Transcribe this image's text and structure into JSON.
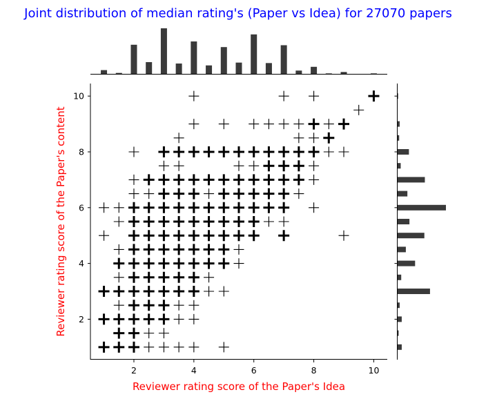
{
  "chart_data": {
    "type": "scatter",
    "title": "Joint distribution of median rating's (Paper vs Idea) for 27070 papers",
    "xlabel": "Reviewer rating score of the Paper's Idea",
    "ylabel": "Reviewer rating score of the Paper's content",
    "xlim": [
      0.55,
      10.45
    ],
    "ylim": [
      0.55,
      10.45
    ],
    "xticks": [
      2,
      4,
      6,
      8,
      10
    ],
    "yticks": [
      2,
      4,
      6,
      8,
      10
    ],
    "xtick_labels": [
      "2",
      "4",
      "6",
      "8",
      "10"
    ],
    "ytick_labels": [
      "2",
      "4",
      "6",
      "8",
      "10"
    ],
    "marker": "plus",
    "marker_color": "#000000",
    "title_color": "#0000ff",
    "label_color": "#ff0000",
    "hist_color": "#3a3a3a",
    "points": [
      [
        4,
        10,
        1
      ],
      [
        7,
        10,
        1
      ],
      [
        8,
        10,
        1
      ],
      [
        10,
        10,
        2
      ],
      [
        9.5,
        9.5,
        1
      ],
      [
        4,
        9,
        1
      ],
      [
        5,
        9,
        1
      ],
      [
        6,
        9,
        1
      ],
      [
        6.5,
        9,
        1
      ],
      [
        7,
        9,
        1
      ],
      [
        7.5,
        9,
        1
      ],
      [
        8,
        9,
        2
      ],
      [
        8.5,
        9,
        1
      ],
      [
        9,
        9,
        2
      ],
      [
        3.5,
        8.5,
        1
      ],
      [
        7.5,
        8.5,
        1
      ],
      [
        8,
        8.5,
        1
      ],
      [
        8.5,
        8.5,
        2
      ],
      [
        2,
        8,
        1
      ],
      [
        3,
        8,
        2
      ],
      [
        3.5,
        8,
        2
      ],
      [
        4,
        8,
        2
      ],
      [
        4.5,
        8,
        2
      ],
      [
        5,
        8,
        2
      ],
      [
        5.5,
        8,
        2
      ],
      [
        6,
        8,
        2
      ],
      [
        6.5,
        8,
        2
      ],
      [
        7,
        8,
        2
      ],
      [
        7.5,
        8,
        2
      ],
      [
        8,
        8,
        2
      ],
      [
        8.5,
        8,
        1
      ],
      [
        9,
        8,
        1
      ],
      [
        3,
        7.5,
        1
      ],
      [
        3.5,
        7.5,
        1
      ],
      [
        5.5,
        7.5,
        1
      ],
      [
        6,
        7.5,
        1
      ],
      [
        6.5,
        7.5,
        2
      ],
      [
        7,
        7.5,
        2
      ],
      [
        7.5,
        7.5,
        2
      ],
      [
        8,
        7.5,
        1
      ],
      [
        2,
        7,
        1
      ],
      [
        2.5,
        7,
        2
      ],
      [
        3,
        7,
        2
      ],
      [
        3.5,
        7,
        2
      ],
      [
        4,
        7,
        2
      ],
      [
        4.5,
        7,
        2
      ],
      [
        5,
        7,
        2
      ],
      [
        5.5,
        7,
        2
      ],
      [
        6,
        7,
        2
      ],
      [
        6.5,
        7,
        2
      ],
      [
        7,
        7,
        2
      ],
      [
        7.5,
        7,
        2
      ],
      [
        8,
        7,
        1
      ],
      [
        2,
        6.5,
        1
      ],
      [
        2.5,
        6.5,
        1
      ],
      [
        3,
        6.5,
        2
      ],
      [
        3.5,
        6.5,
        2
      ],
      [
        4,
        6.5,
        2
      ],
      [
        4.5,
        6.5,
        1
      ],
      [
        5,
        6.5,
        2
      ],
      [
        5.5,
        6.5,
        2
      ],
      [
        6,
        6.5,
        2
      ],
      [
        6.5,
        6.5,
        2
      ],
      [
        7,
        6.5,
        2
      ],
      [
        7.5,
        6.5,
        1
      ],
      [
        1,
        6,
        1
      ],
      [
        1.5,
        6,
        1
      ],
      [
        2,
        6,
        2
      ],
      [
        2.5,
        6,
        2
      ],
      [
        3,
        6,
        2
      ],
      [
        3.5,
        6,
        2
      ],
      [
        4,
        6,
        2
      ],
      [
        4.5,
        6,
        2
      ],
      [
        5,
        6,
        2
      ],
      [
        5.5,
        6,
        2
      ],
      [
        6,
        6,
        2
      ],
      [
        6.5,
        6,
        2
      ],
      [
        7,
        6,
        2
      ],
      [
        8,
        6,
        1
      ],
      [
        1.5,
        5.5,
        1
      ],
      [
        2,
        5.5,
        2
      ],
      [
        2.5,
        5.5,
        2
      ],
      [
        3,
        5.5,
        2
      ],
      [
        3.5,
        5.5,
        2
      ],
      [
        4,
        5.5,
        2
      ],
      [
        4.5,
        5.5,
        2
      ],
      [
        5,
        5.5,
        2
      ],
      [
        5.5,
        5.5,
        2
      ],
      [
        6,
        5.5,
        2
      ],
      [
        6.5,
        5.5,
        1
      ],
      [
        7,
        5.5,
        1
      ],
      [
        1,
        5,
        1
      ],
      [
        2,
        5,
        2
      ],
      [
        2.5,
        5,
        2
      ],
      [
        3,
        5,
        2
      ],
      [
        3.5,
        5,
        2
      ],
      [
        4,
        5,
        2
      ],
      [
        4.5,
        5,
        2
      ],
      [
        5,
        5,
        2
      ],
      [
        5.5,
        5,
        2
      ],
      [
        6,
        5,
        2
      ],
      [
        7,
        5,
        2
      ],
      [
        9,
        5,
        1
      ],
      [
        1.5,
        4.5,
        1
      ],
      [
        2,
        4.5,
        2
      ],
      [
        2.5,
        4.5,
        2
      ],
      [
        3,
        4.5,
        2
      ],
      [
        3.5,
        4.5,
        2
      ],
      [
        4,
        4.5,
        2
      ],
      [
        4.5,
        4.5,
        2
      ],
      [
        5,
        4.5,
        2
      ],
      [
        5.5,
        4.5,
        1
      ],
      [
        1.5,
        4,
        2
      ],
      [
        2,
        4,
        2
      ],
      [
        2.5,
        4,
        2
      ],
      [
        3,
        4,
        2
      ],
      [
        3.5,
        4,
        2
      ],
      [
        4,
        4,
        2
      ],
      [
        4.5,
        4,
        2
      ],
      [
        5,
        4,
        2
      ],
      [
        5.5,
        4,
        1
      ],
      [
        1.5,
        3.5,
        1
      ],
      [
        2,
        3.5,
        2
      ],
      [
        2.5,
        3.5,
        2
      ],
      [
        3,
        3.5,
        2
      ],
      [
        3.5,
        3.5,
        2
      ],
      [
        4,
        3.5,
        2
      ],
      [
        4.5,
        3.5,
        1
      ],
      [
        1,
        3,
        2
      ],
      [
        1.5,
        3,
        2
      ],
      [
        2,
        3,
        2
      ],
      [
        2.5,
        3,
        2
      ],
      [
        3,
        3,
        2
      ],
      [
        3.5,
        3,
        2
      ],
      [
        4,
        3,
        2
      ],
      [
        4.5,
        3,
        1
      ],
      [
        5,
        3,
        1
      ],
      [
        1.5,
        2.5,
        1
      ],
      [
        2,
        2.5,
        2
      ],
      [
        2.5,
        2.5,
        2
      ],
      [
        3,
        2.5,
        2
      ],
      [
        3.5,
        2.5,
        1
      ],
      [
        4,
        2.5,
        1
      ],
      [
        1,
        2,
        2
      ],
      [
        1.5,
        2,
        2
      ],
      [
        2,
        2,
        2
      ],
      [
        2.5,
        2,
        2
      ],
      [
        3,
        2,
        2
      ],
      [
        3.5,
        2,
        1
      ],
      [
        4,
        2,
        1
      ],
      [
        1.5,
        1.5,
        2
      ],
      [
        2,
        1.5,
        2
      ],
      [
        2.5,
        1.5,
        1
      ],
      [
        3,
        1.5,
        1
      ],
      [
        1,
        1,
        2
      ],
      [
        1.5,
        1,
        2
      ],
      [
        2,
        1,
        2
      ],
      [
        2.5,
        1,
        1
      ],
      [
        3,
        1,
        1
      ],
      [
        3.5,
        1,
        1
      ],
      [
        4,
        1,
        1
      ],
      [
        5,
        1,
        1
      ]
    ],
    "marginal_x": {
      "bins": [
        1,
        1.5,
        2,
        2.5,
        3,
        3.5,
        4,
        4.5,
        5,
        5.5,
        6,
        6.5,
        7,
        7.5,
        8,
        8.5,
        9,
        9.5,
        10
      ],
      "values": [
        8,
        2,
        62,
        25,
        97,
        22,
        69,
        18,
        57,
        24,
        84,
        23,
        61,
        7,
        15,
        1,
        4,
        0,
        1
      ]
    },
    "marginal_y": {
      "bins": [
        1,
        1.5,
        2,
        2.5,
        3,
        3.5,
        4,
        4.5,
        5,
        5.5,
        6,
        6.5,
        7,
        7.5,
        8,
        8.5,
        9,
        9.5,
        10
      ],
      "values": [
        8,
        2,
        8,
        4,
        63,
        7,
        34,
        16,
        52,
        23,
        94,
        19,
        53,
        6,
        22,
        3,
        4,
        0,
        1
      ]
    }
  }
}
